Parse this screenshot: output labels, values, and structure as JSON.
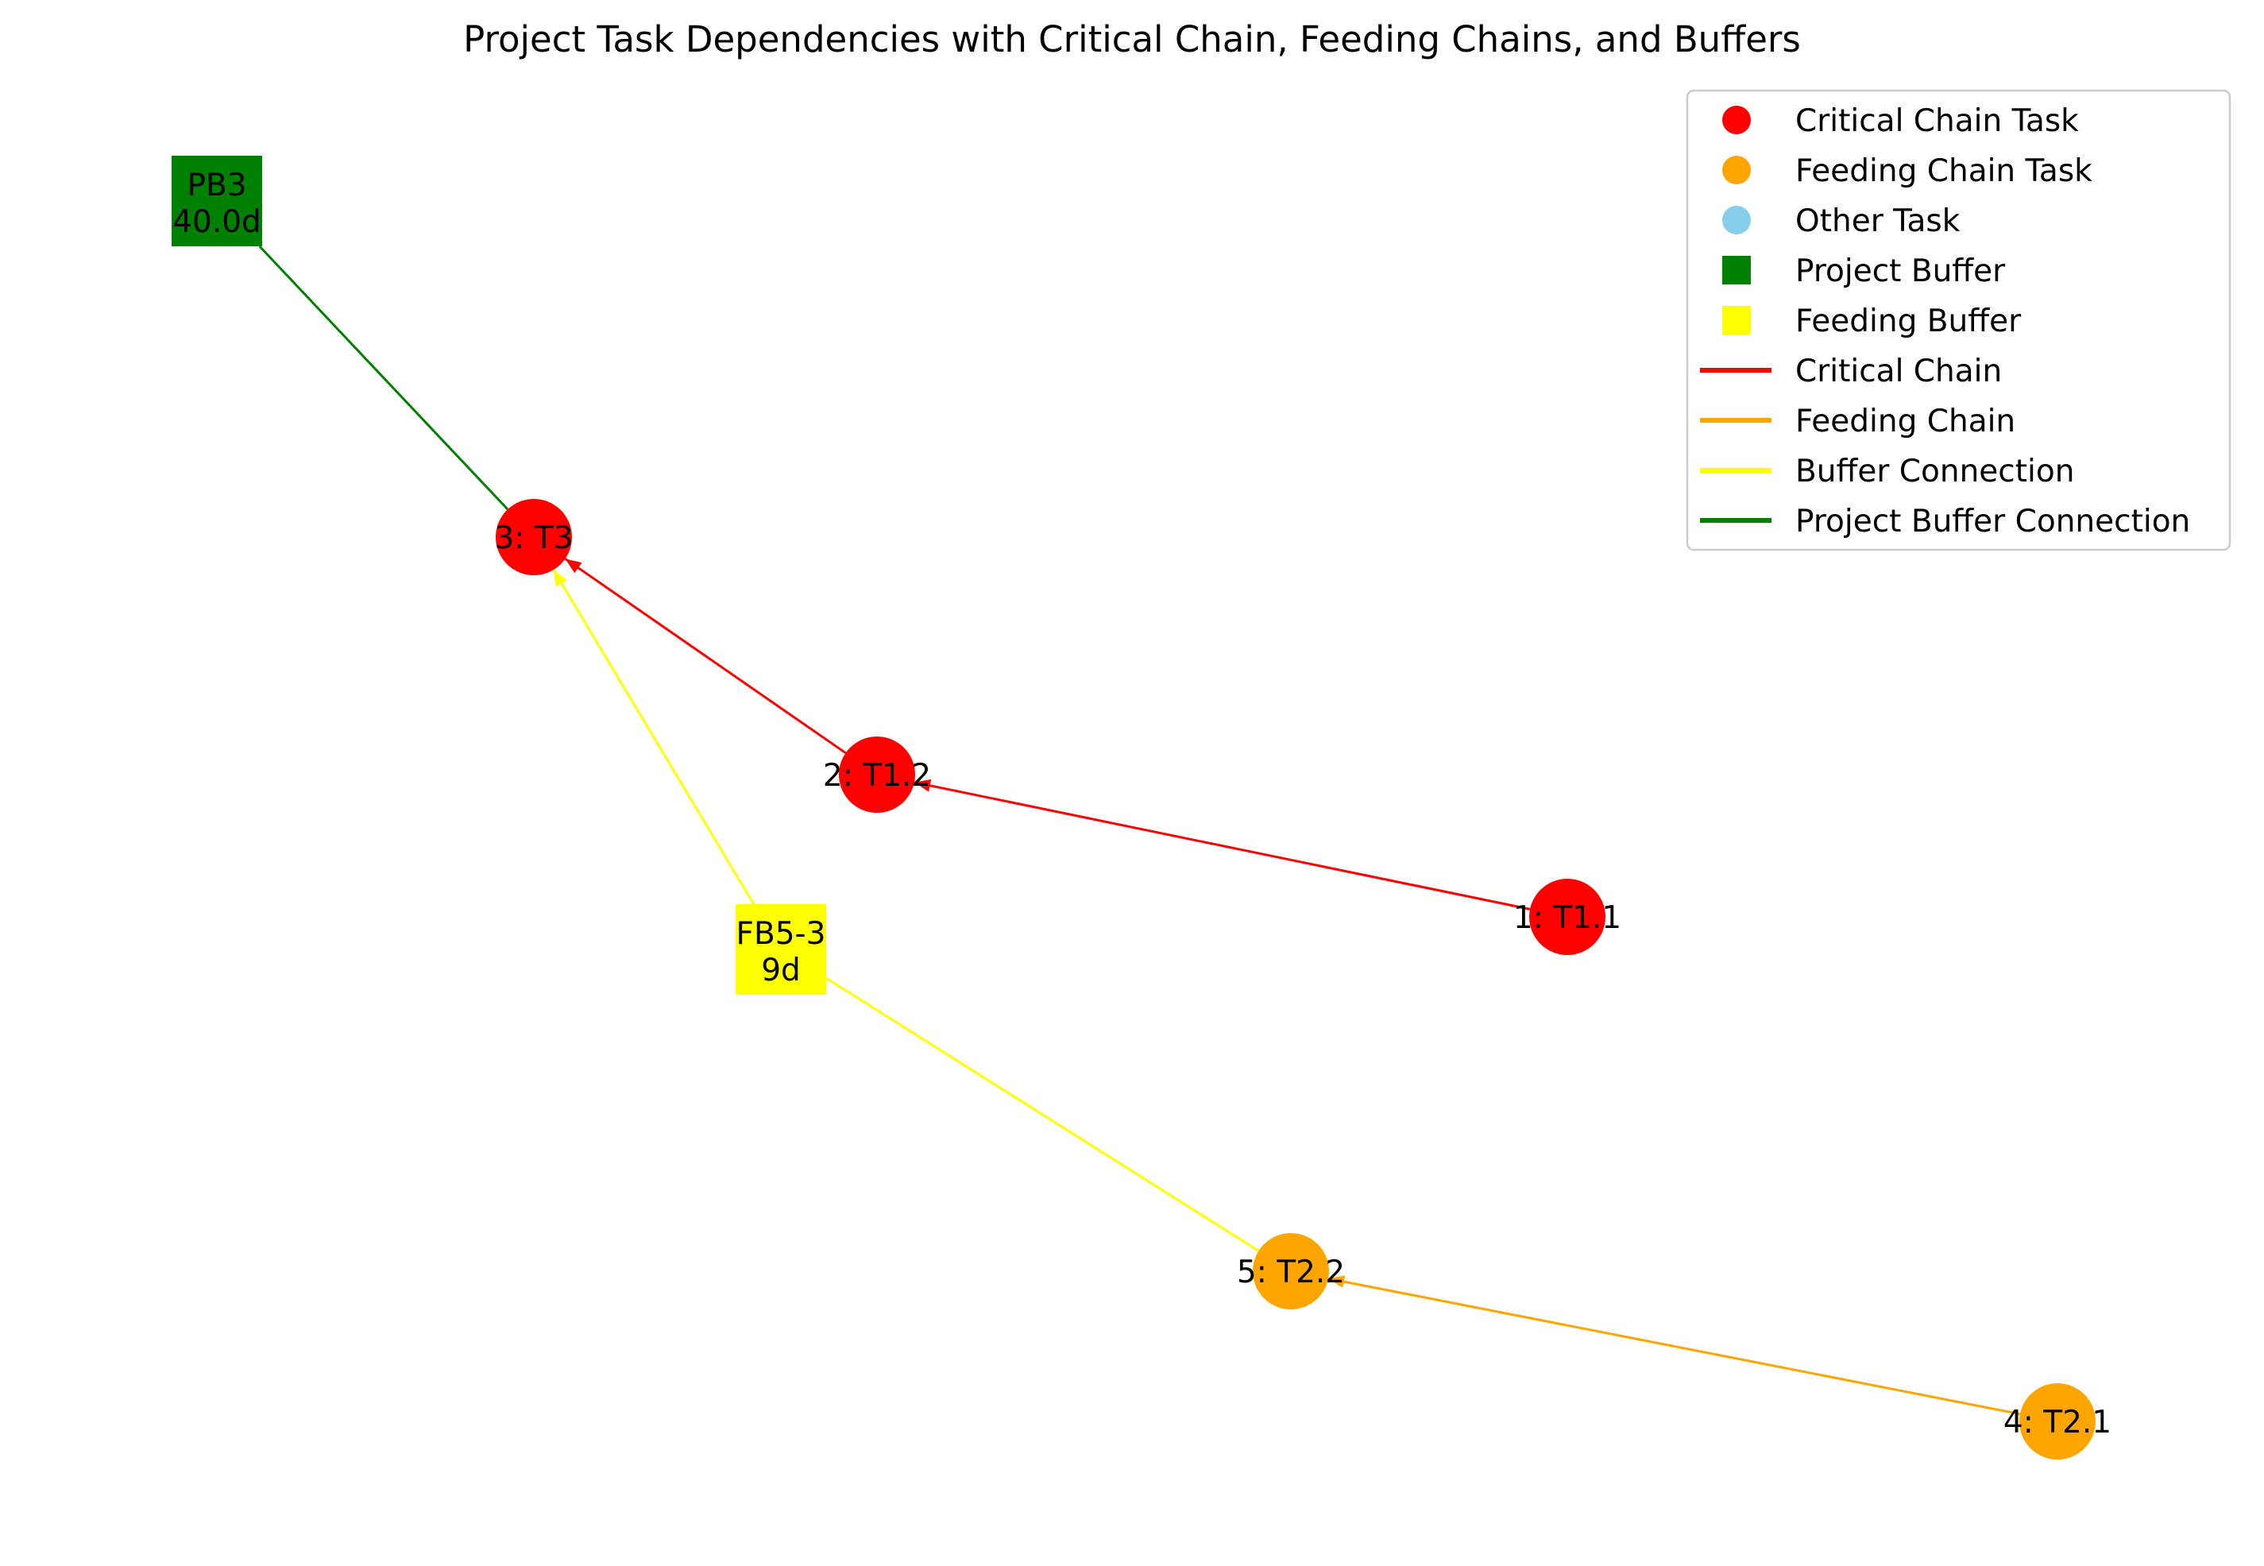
{
  "title": "Project Task Dependencies with Critical Chain, Feeding Chains, and Buffers",
  "colors": {
    "critical": "#ff0000",
    "feeding": "#ffa500",
    "other": "#87ceeb",
    "project_buffer": "#008000",
    "feeding_buffer": "#ffff00",
    "buffer_connection": "#ffff00",
    "project_buffer_connection": "#008000"
  },
  "nodes": [
    {
      "id": "3",
      "label": "3: T3",
      "type": "critical"
    },
    {
      "id": "2",
      "label": "2: T1.2",
      "type": "critical"
    },
    {
      "id": "1",
      "label": "1: T1.1",
      "type": "critical"
    },
    {
      "id": "5",
      "label": "5: T2.2",
      "type": "feeding"
    },
    {
      "id": "4",
      "label": "4: T2.1",
      "type": "feeding"
    },
    {
      "id": "PB3",
      "label_lines": [
        "PB3",
        "40.0d"
      ],
      "type": "project_buffer"
    },
    {
      "id": "FB5-3",
      "label_lines": [
        "FB5-3",
        "9d"
      ],
      "type": "feeding_buffer"
    }
  ],
  "edges": [
    {
      "from": "1",
      "to": "2",
      "type": "critical",
      "arrow": true
    },
    {
      "from": "2",
      "to": "3",
      "type": "critical",
      "arrow": true
    },
    {
      "from": "4",
      "to": "5",
      "type": "feeding",
      "arrow": true
    },
    {
      "from": "5",
      "to": "FB5-3",
      "type": "buffer_connection",
      "arrow": false
    },
    {
      "from": "FB5-3",
      "to": "3",
      "type": "buffer_connection",
      "arrow": true
    },
    {
      "from": "3",
      "to": "PB3",
      "type": "project_buffer_connection",
      "arrow": false
    }
  ],
  "legend": [
    {
      "label": "Critical Chain Task",
      "marker": "circle",
      "color": "#ff0000"
    },
    {
      "label": "Feeding Chain Task",
      "marker": "circle",
      "color": "#ffa500"
    },
    {
      "label": "Other Task",
      "marker": "circle",
      "color": "#87ceeb"
    },
    {
      "label": "Project Buffer",
      "marker": "square",
      "color": "#008000"
    },
    {
      "label": "Feeding Buffer",
      "marker": "square",
      "color": "#ffff00"
    },
    {
      "label": "Critical Chain",
      "marker": "line",
      "color": "#ff0000"
    },
    {
      "label": "Feeding Chain",
      "marker": "line",
      "color": "#ffa500"
    },
    {
      "label": "Buffer Connection",
      "marker": "line",
      "color": "#ffff00"
    },
    {
      "label": "Project Buffer Connection",
      "marker": "line",
      "color": "#008000"
    }
  ]
}
